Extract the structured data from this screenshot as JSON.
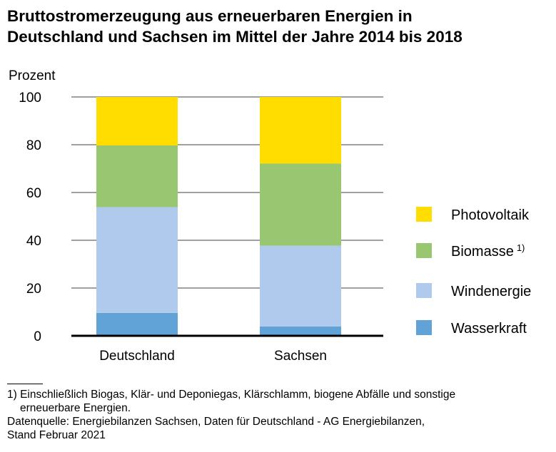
{
  "title_lines": [
    "Bruttostromerzeugung aus erneuerbaren Energien in",
    "Deutschland und Sachsen im Mittel der Jahre 2014 bis 2018"
  ],
  "chart_data": {
    "type": "bar",
    "stacked": true,
    "title": "Bruttostromerzeugung aus erneuerbaren Energien in Deutschland und Sachsen im Mittel der Jahre 2014 bis 2018",
    "ylabel": "Prozent",
    "xlabel": "",
    "ylim": [
      0,
      100
    ],
    "yticks": [
      0,
      20,
      40,
      60,
      80,
      100
    ],
    "grid": true,
    "legend_position": "right",
    "categories": [
      "Deutschland",
      "Sachsen"
    ],
    "series": [
      {
        "name": "Wasserkraft",
        "values": [
          9.6,
          3.9
        ],
        "color": "#62A3D7"
      },
      {
        "name": "Windenergie",
        "values": [
          44.3,
          33.8
        ],
        "color": "#B0CAED"
      },
      {
        "name": "Biomasse",
        "values": [
          25.8,
          34.4
        ],
        "color": "#98C671",
        "footnote_mark": "1)"
      },
      {
        "name": "Photovoltaik",
        "values": [
          20.3,
          27.9
        ],
        "color": "#FFDD00"
      }
    ]
  },
  "footnotes": {
    "note1_line1": "1) Einschließlich Biogas, Klär- und Deponiegas, Klärschlamm, biogene Abfälle und sonstige",
    "note1_line2": "erneuerbare Energien.",
    "source_line1": "Datenquelle: Energiebilanzen Sachsen, Daten für Deutschland - AG Energiebilanzen,",
    "source_line2": "Stand Februar 2021"
  }
}
